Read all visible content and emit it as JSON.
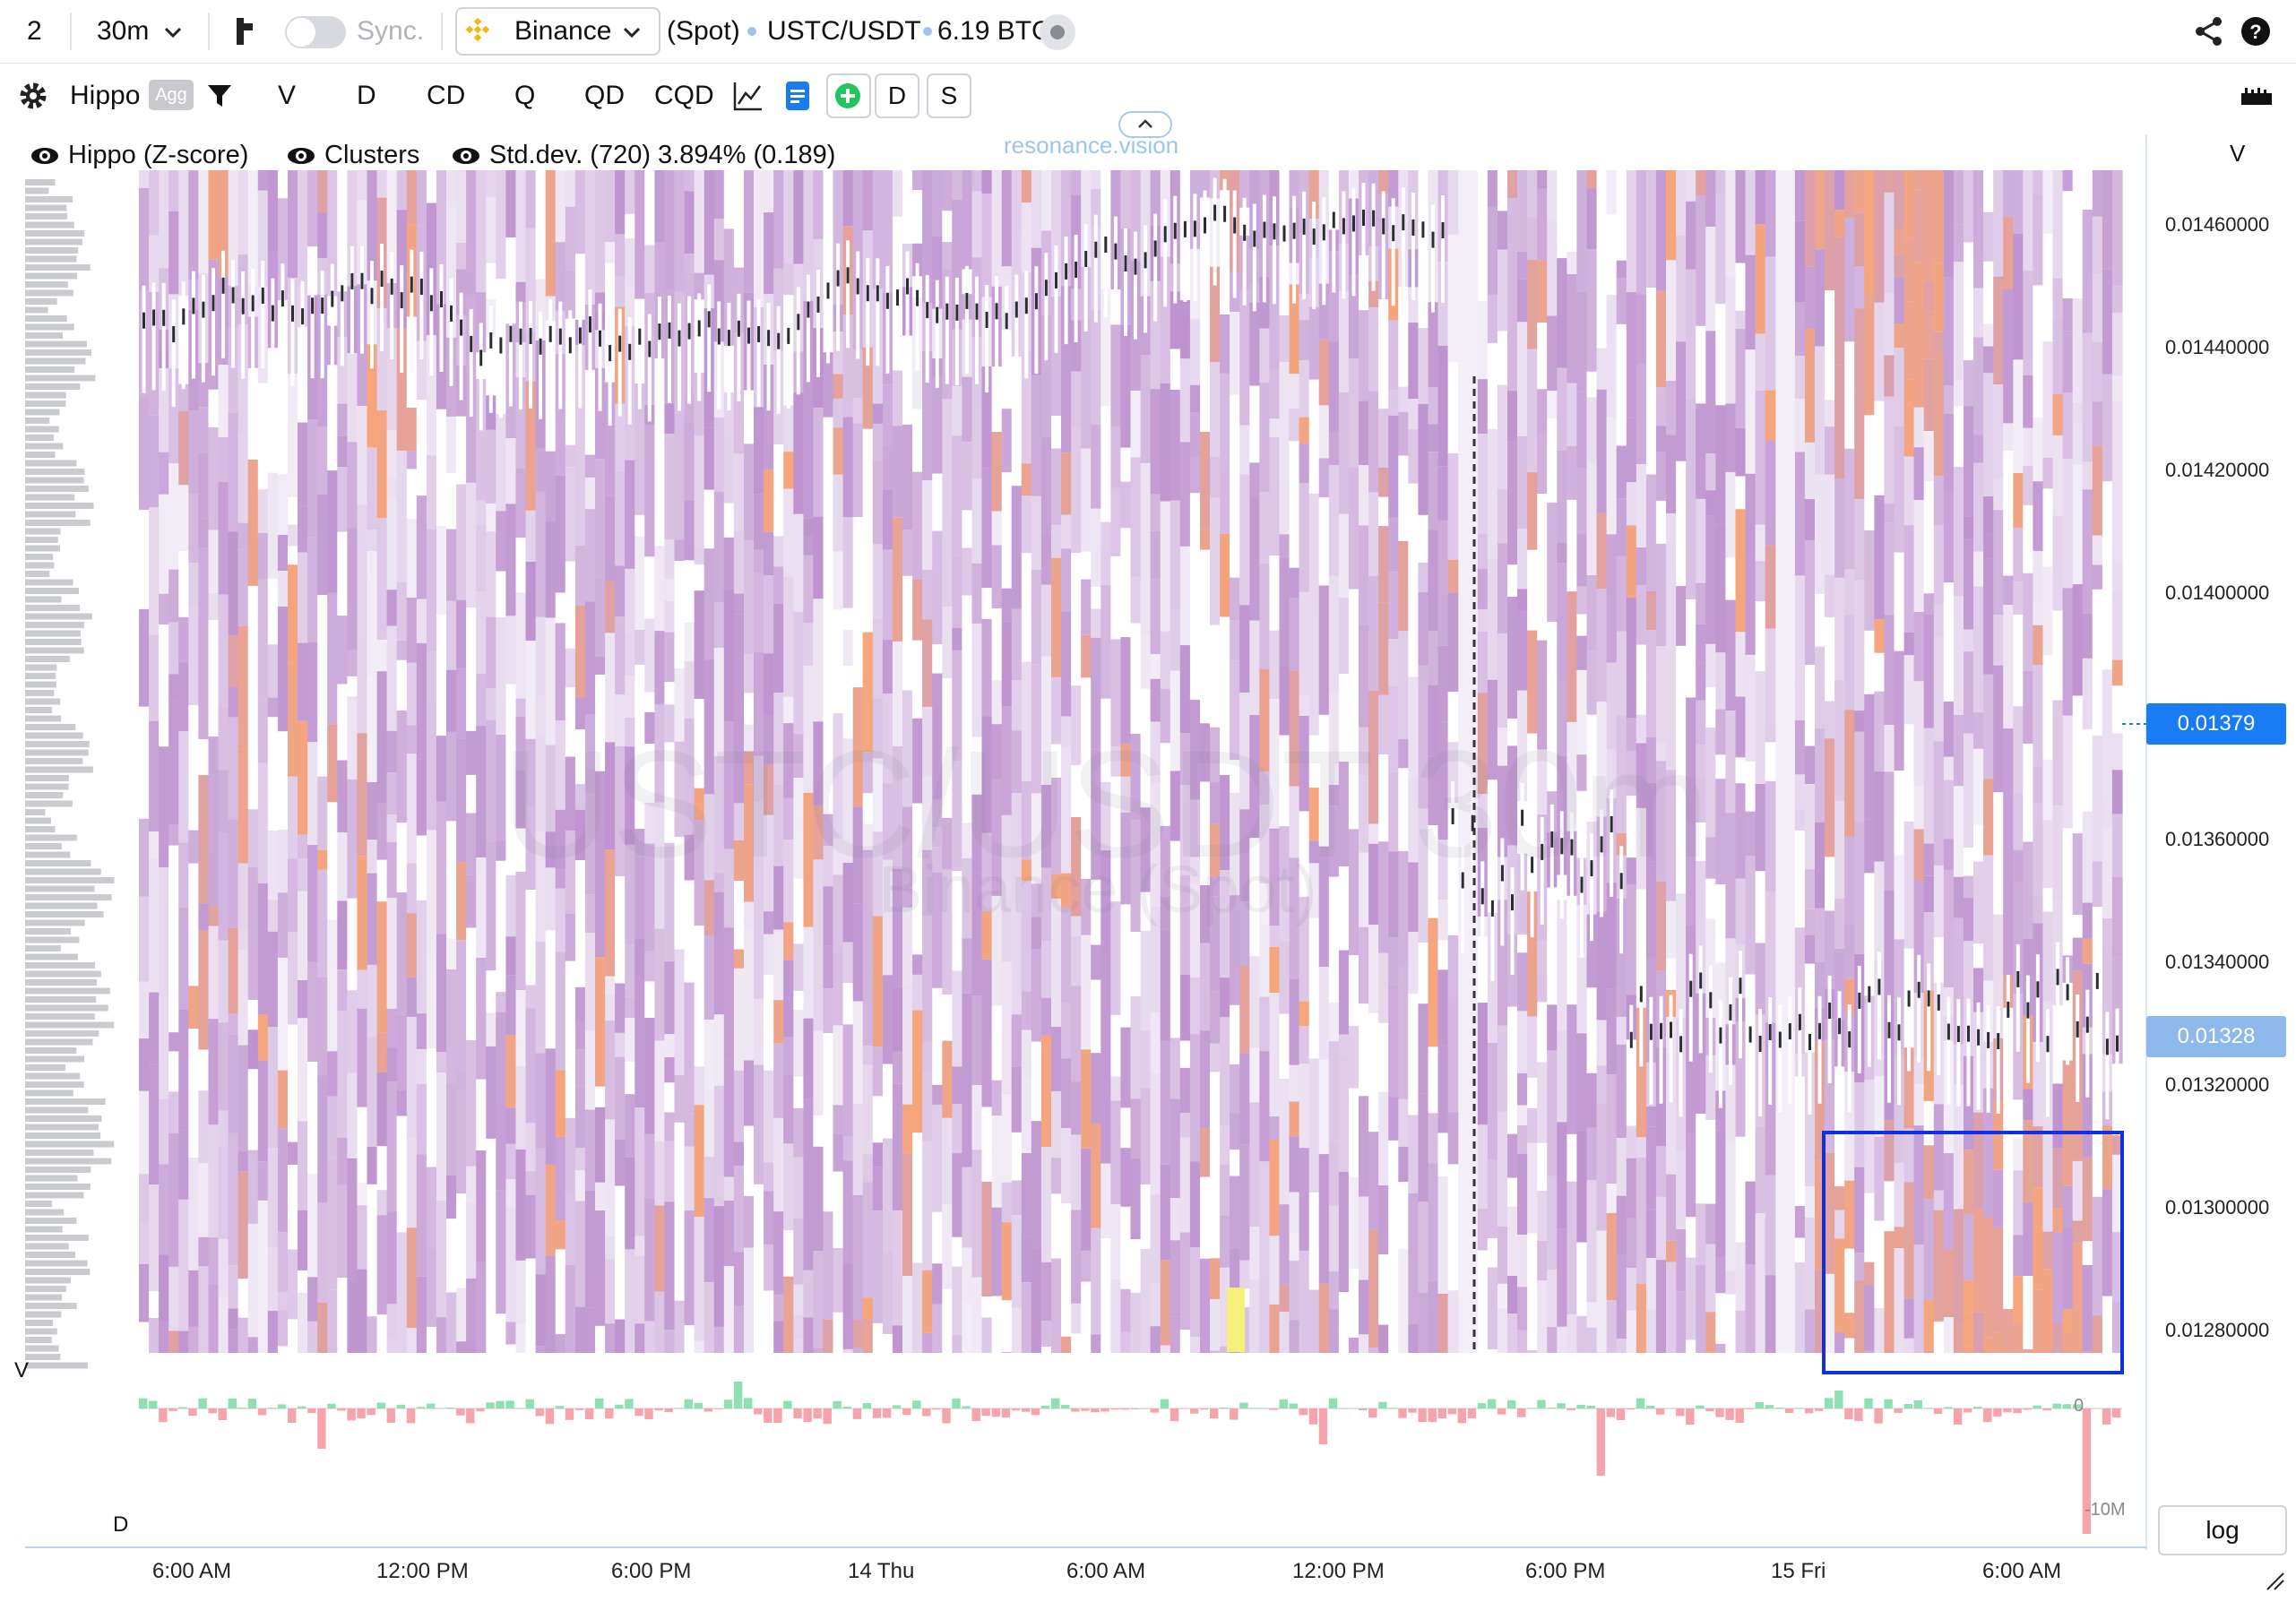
{
  "toolbar": {
    "layout_count": "2",
    "timeframe": "30m",
    "sync_label": "Sync.",
    "exchange": "Binance",
    "market_type": "(Spot)",
    "pair": "USTC/USDT",
    "volume": "6.19 BTC",
    "icons": [
      "chevron-down-icon",
      "chart-layout-icon",
      "share-icon",
      "help-icon"
    ]
  },
  "indicator_bar": {
    "name": "Hippo",
    "agg_badge": "Agg",
    "buttons": [
      "V",
      "D",
      "CD",
      "Q",
      "QD",
      "CQD"
    ],
    "toggles": [
      "D",
      "S"
    ],
    "icons": [
      "gear-icon",
      "filter-icon",
      "line-chart-icon",
      "document-icon",
      "plus-circle-icon",
      "ruler-icon"
    ]
  },
  "legend": {
    "items": [
      "Hippo (Z-score)",
      "Clusters",
      "Std.dev. (720) 3.894% (0.189)"
    ],
    "brand": "resonance.vision"
  },
  "watermark": {
    "pair": "USTC/USDT 30m",
    "exchange": "Binance (Spot)"
  },
  "axes": {
    "price_axis_title": "V",
    "price_labels": [
      "0.01460000",
      "0.01440000",
      "0.01420000",
      "0.01400000",
      "0.01360000",
      "0.01340000",
      "0.01320000",
      "0.01300000",
      "0.01280000"
    ],
    "current_price": "0.01379",
    "marked_price": "0.01328",
    "volume_pane_label": "V",
    "delta_pane_label": "D",
    "delta_labels": [
      "0",
      "-10M"
    ],
    "time_labels": [
      "6:00 AM",
      "12:00 PM",
      "6:00 PM",
      "14 Thu",
      "6:00 AM",
      "12:00 PM",
      "6:00 PM",
      "15 Fri",
      "6:00 AM"
    ],
    "scale_button": "log"
  },
  "colors": {
    "accent": "#1a7cf5",
    "highlight_box": "#1030e0",
    "heat_low": "#f3eef7",
    "heat_mid": "#c39bd3",
    "heat_high": "#f7a67a",
    "delta_pos": "#8ee0b2",
    "delta_neg": "#f7a3ac"
  }
}
